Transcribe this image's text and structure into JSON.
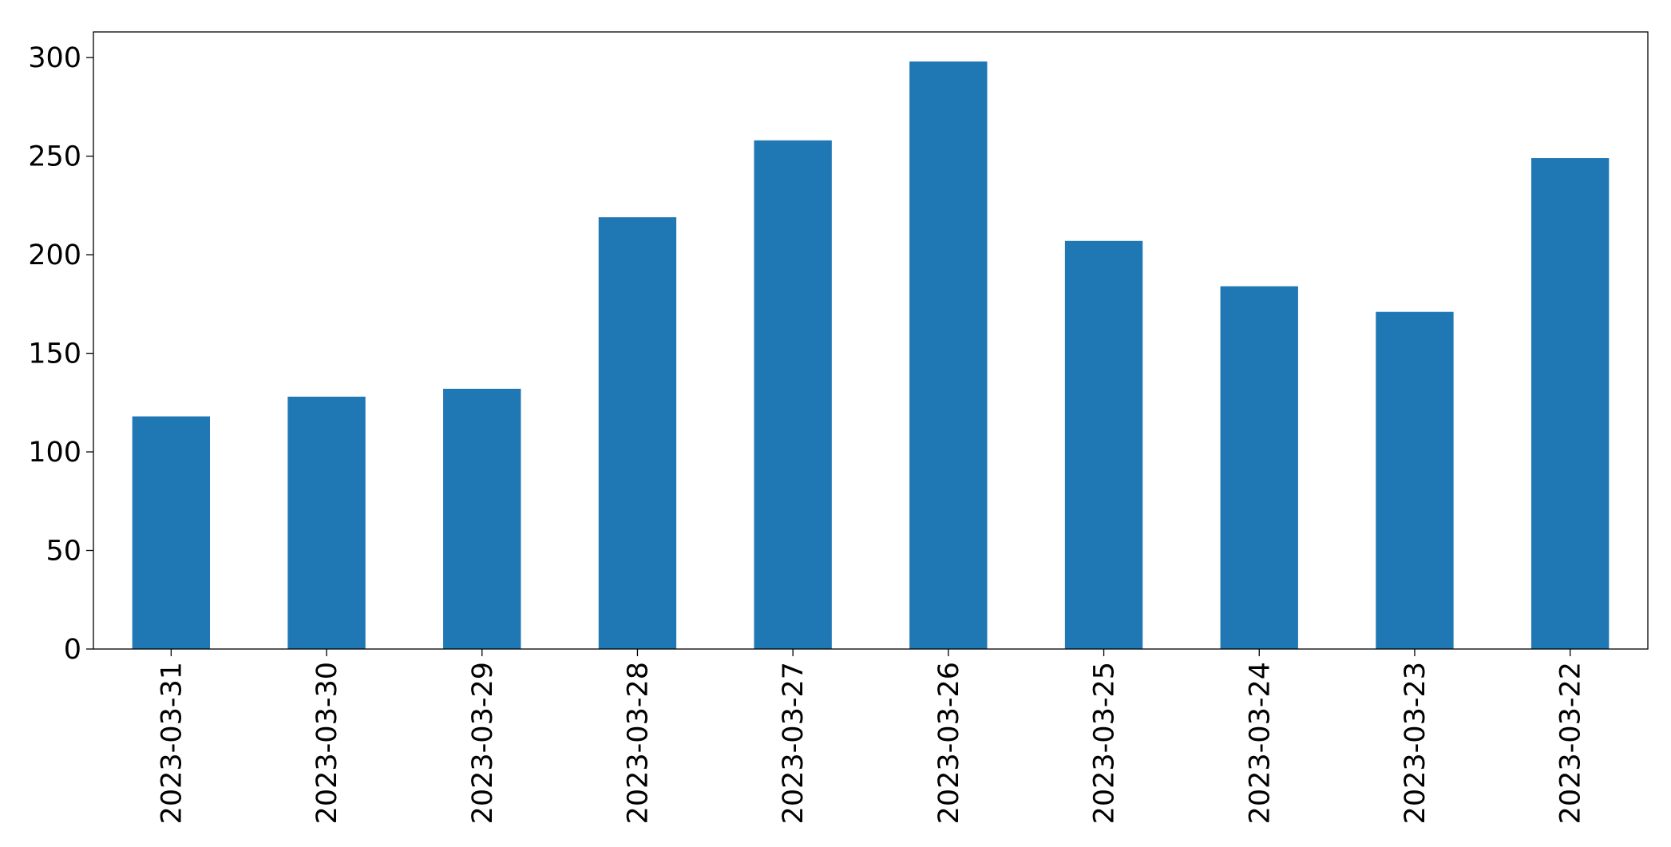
{
  "chart_data": {
    "type": "bar",
    "categories": [
      "2023-03-31",
      "2023-03-30",
      "2023-03-29",
      "2023-03-28",
      "2023-03-27",
      "2023-03-26",
      "2023-03-25",
      "2023-03-24",
      "2023-03-23",
      "2023-03-22"
    ],
    "values": [
      118,
      128,
      132,
      219,
      258,
      298,
      207,
      184,
      171,
      249
    ],
    "color": "#1f77b4",
    "ylim": [
      0,
      313
    ],
    "yticks": [
      0,
      50,
      100,
      150,
      200,
      250,
      300
    ],
    "grid": false
  }
}
